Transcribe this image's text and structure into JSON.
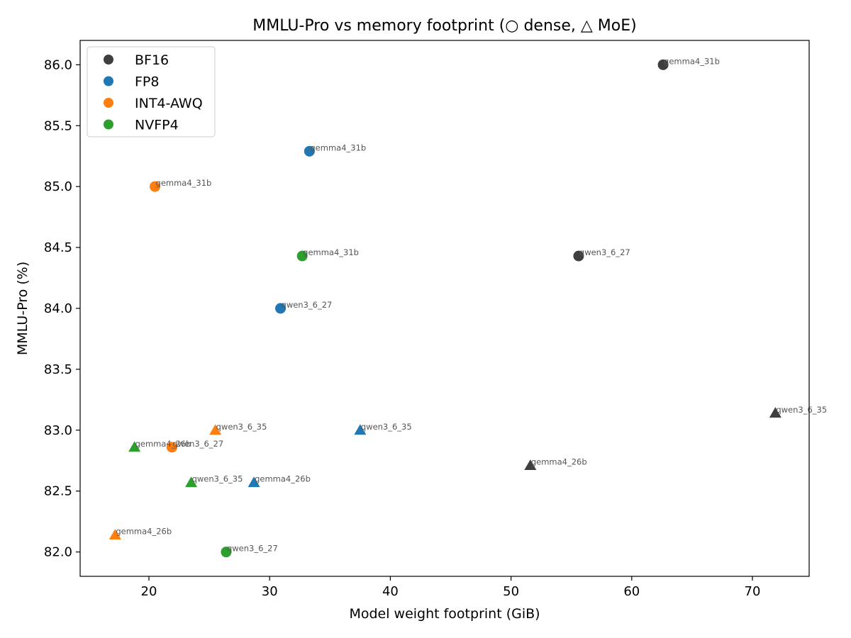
{
  "chart_data": {
    "type": "scatter",
    "title": "MMLU-Pro vs memory footprint (○ dense, △ MoE)",
    "xlabel": "Model weight footprint (GiB)",
    "ylabel": "MMLU-Pro (%)",
    "xlim": [
      14.3,
      74.7
    ],
    "ylim": [
      81.8,
      86.2
    ],
    "xticks": [
      20,
      30,
      40,
      50,
      60,
      70
    ],
    "yticks": [
      82.0,
      82.5,
      83.0,
      83.5,
      84.0,
      84.5,
      85.0,
      85.5,
      86.0
    ],
    "grid": false,
    "legend_position": "top-left",
    "marker_legend": {
      "dense": "circle",
      "MoE": "triangle"
    },
    "series": [
      {
        "name": "BF16",
        "color": "#3f3f3f",
        "points": [
          {
            "label": "gemma4_31b",
            "x": 62.6,
            "y": 86.0,
            "marker": "circle"
          },
          {
            "label": "qwen3_6_27",
            "x": 55.6,
            "y": 84.43,
            "marker": "circle"
          },
          {
            "label": "qwen3_6_35",
            "x": 71.9,
            "y": 83.14,
            "marker": "triangle"
          },
          {
            "label": "gemma4_26b",
            "x": 51.6,
            "y": 82.71,
            "marker": "triangle"
          }
        ]
      },
      {
        "name": "FP8",
        "color": "#1f77b4",
        "points": [
          {
            "label": "gemma4_31b",
            "x": 33.3,
            "y": 85.29,
            "marker": "circle"
          },
          {
            "label": "qwen3_6_27",
            "x": 30.9,
            "y": 84.0,
            "marker": "circle"
          },
          {
            "label": "qwen3_6_35",
            "x": 37.5,
            "y": 83.0,
            "marker": "triangle"
          },
          {
            "label": "gemma4_26b",
            "x": 28.7,
            "y": 82.57,
            "marker": "triangle"
          }
        ]
      },
      {
        "name": "INT4-AWQ",
        "color": "#ff7f0e",
        "points": [
          {
            "label": "gemma4_31b",
            "x": 20.5,
            "y": 85.0,
            "marker": "circle"
          },
          {
            "label": "qwen3_6_27",
            "x": 21.9,
            "y": 82.86,
            "marker": "circle"
          },
          {
            "label": "qwen3_6_35",
            "x": 25.5,
            "y": 83.0,
            "marker": "triangle"
          },
          {
            "label": "gemma4_26b",
            "x": 17.2,
            "y": 82.14,
            "marker": "triangle"
          }
        ]
      },
      {
        "name": "NVFP4",
        "color": "#2ca02c",
        "points": [
          {
            "label": "gemma4_31b",
            "x": 32.7,
            "y": 84.43,
            "marker": "circle"
          },
          {
            "label": "qwen3_6_27",
            "x": 26.4,
            "y": 82.0,
            "marker": "circle"
          },
          {
            "label": "qwen3_6_35",
            "x": 23.5,
            "y": 82.57,
            "marker": "triangle"
          },
          {
            "label": "gemma4_26b",
            "x": 18.8,
            "y": 82.86,
            "marker": "triangle"
          }
        ]
      }
    ]
  }
}
